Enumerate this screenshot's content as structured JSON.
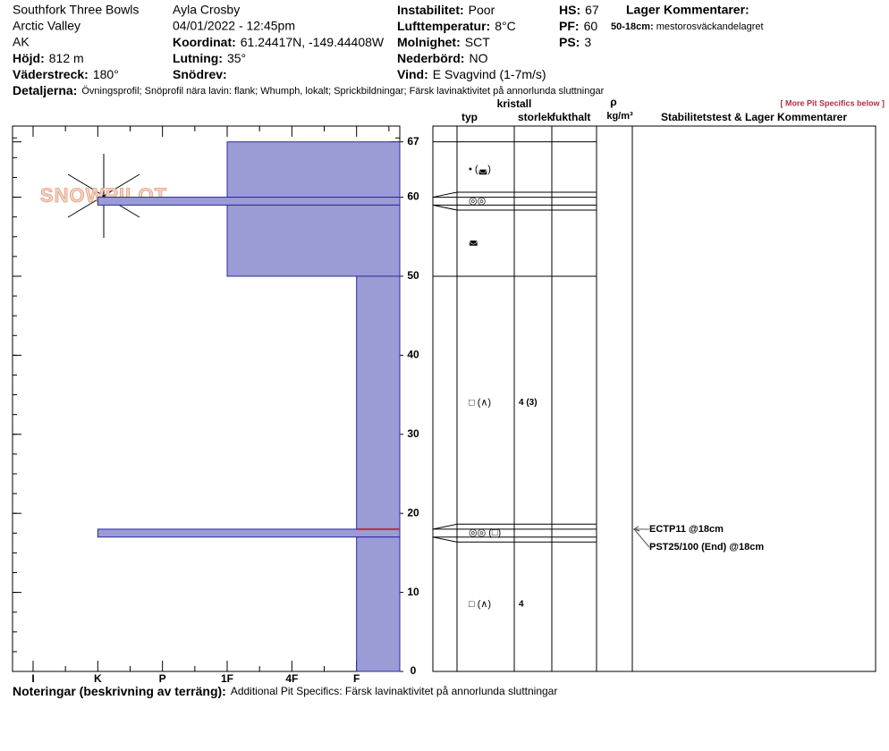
{
  "header": {
    "location": "Southfork Three Bowls",
    "area": "Arctic Valley",
    "state": "AK",
    "elevation": {
      "label": "Höjd:",
      "value": "812 m"
    },
    "aspect": {
      "label": "Väderstreck:",
      "value": "180°"
    },
    "observer": "Ayla Crosby",
    "date": "04/01/2022 - 12:45pm",
    "coordinate": {
      "label": "Koordinat:",
      "value": "61.24417N, -149.44408W"
    },
    "slope": {
      "label": "Lutning:",
      "value": "35°"
    },
    "wind_loading": {
      "label": "Snödrev:"
    },
    "stability": {
      "label": "Instabilitet:",
      "value": "Poor"
    },
    "air_temp": {
      "label": "Lufttemperatur:",
      "value": "8°C"
    },
    "sky": {
      "label": "Molnighet:",
      "value": "SCT"
    },
    "precip": {
      "label": "Nederbörd:",
      "value": "NO"
    },
    "wind": {
      "label": "Vind:",
      "value": "E Svagvind (1-7m/s)"
    },
    "hs": {
      "label": "HS:",
      "value": "67"
    },
    "pf": {
      "label": "PF:",
      "value": "60"
    },
    "ps": {
      "label": "PS:",
      "value": "3"
    },
    "layer_comments_title": "Lager Kommentarer:",
    "layer_comments": [
      {
        "range": "50-18cm:",
        "text": "mestorosväckandelagret"
      }
    ],
    "details": {
      "label": "Detaljerna:",
      "text": "Övningsprofil;  Snöprofil nära lavin: flank;  Whumph, lokalt;  Sprickbildningar;  Färsk lavinaktivitet på annorlunda sluttningar"
    },
    "more_link": "[ More Pit Specifics below ]",
    "logo": "SNOWPILOT"
  },
  "notes": {
    "label": "Noteringar (beskrivning av terräng):",
    "text": "Additional Pit Specifics: Färsk lavinaktivitet på annorlunda sluttningar"
  },
  "columns": {
    "crystal": "kristall",
    "type": "typ",
    "size": "storlek",
    "moisture": "fukthalt",
    "rho": "ρ",
    "density_unit": "kg/m³",
    "tests": "Stabilitetstest & Lager Kommentarer"
  },
  "chart_data": {
    "type": "profile",
    "hardness_categories": [
      "I",
      "K",
      "P",
      "1F",
      "4F",
      "F"
    ],
    "ylim": [
      0,
      69
    ],
    "yticks": [
      0,
      10,
      20,
      30,
      40,
      50,
      60,
      67
    ],
    "color": "#9b9bd6",
    "layers": [
      {
        "top": 67,
        "bottom": 60,
        "hardness": "1F",
        "grain": "•  (◛)"
      },
      {
        "top": 60,
        "bottom": 59,
        "hardness": "K",
        "grain": "◎◎"
      },
      {
        "top": 59,
        "bottom": 50,
        "hardness": "1F",
        "grain": "◛"
      },
      {
        "top": 50,
        "bottom": 18,
        "hardness": "F",
        "grain": "□ (∧)",
        "size": "4 (3)"
      },
      {
        "top": 18,
        "bottom": 17,
        "hardness": "K",
        "grain": "◎◎ (□)"
      },
      {
        "top": 17,
        "bottom": 0,
        "hardness": "F",
        "grain": "□ (∧)",
        "size": "4"
      }
    ],
    "failure": {
      "depth": 18,
      "color": "#b03040"
    },
    "tests": [
      {
        "text": "ECTP11 @18cm",
        "depth": 18
      },
      {
        "text": "PST25/100 (End) @18cm",
        "depth": 18
      }
    ]
  }
}
